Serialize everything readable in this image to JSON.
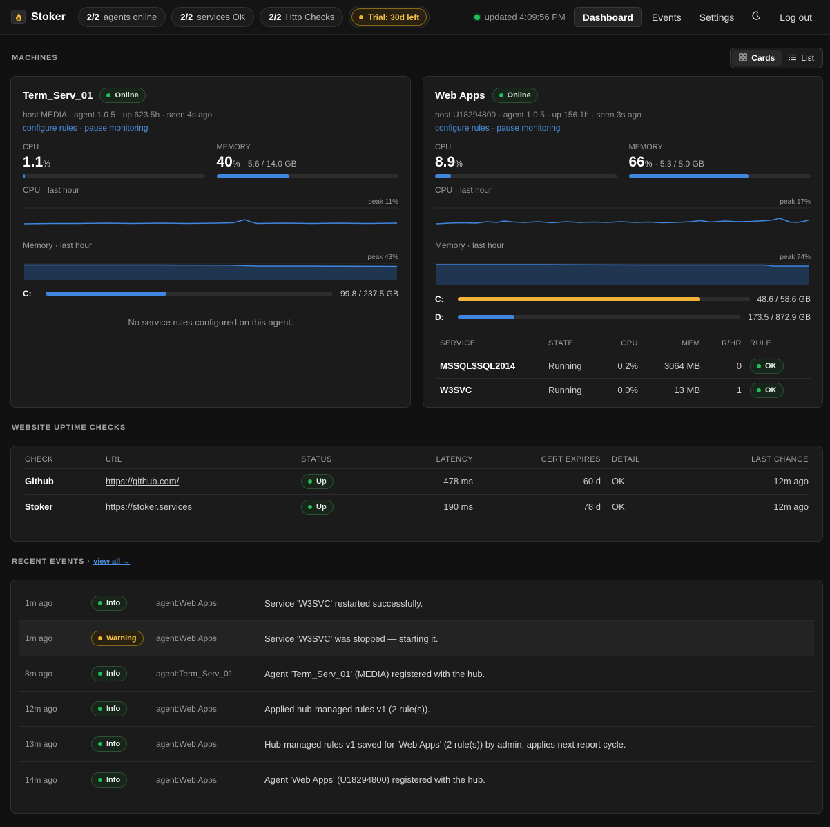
{
  "header": {
    "brand": "Stoker",
    "agents": {
      "count": "2/2",
      "label": "agents online"
    },
    "services": {
      "count": "2/2",
      "label": "services OK"
    },
    "checks": {
      "count": "2/2",
      "label": "Http Checks"
    },
    "trial": "Trial: 30d left",
    "updated": "updated 4:09:56 PM",
    "nav": {
      "dashboard": "Dashboard",
      "events": "Events",
      "settings": "Settings",
      "logout": "Log out"
    }
  },
  "machines_section": {
    "title": "MACHINES",
    "view_cards": "Cards",
    "view_list": "List"
  },
  "machines": [
    {
      "name": "Term_Serv_01",
      "status": "Online",
      "info": "host MEDIA · agent 1.0.5 · up 623.5h · seen 4s ago",
      "link_configure": "configure rules",
      "link_sep": " · ",
      "link_pause": "pause monitoring",
      "cpu_label": "CPU",
      "cpu_value": "1.1",
      "cpu_unit": "%",
      "cpu_pct": 1.1,
      "mem_label": "MEMORY",
      "mem_value": "40",
      "mem_unit": "%",
      "mem_detail": "· 5.6 / 14.0 GB",
      "mem_pct": 40,
      "cpu_spark_label": "CPU · last hour",
      "cpu_peak": "peak 11%",
      "mem_spark_label": "Memory · last hour",
      "mem_peak": "peak 43%",
      "disks": [
        {
          "letter": "C:",
          "value": "99.8 / 237.5 GB",
          "pct": 42,
          "color": "#3f86e0"
        }
      ],
      "no_rules": "No service rules configured on this agent."
    },
    {
      "name": "Web Apps",
      "status": "Online",
      "info": "host U18294800 · agent 1.0.5 · up 156.1h · seen 3s ago",
      "link_configure": "configure rules",
      "link_sep": " · ",
      "link_pause": "pause monitoring",
      "cpu_label": "CPU",
      "cpu_value": "8.9",
      "cpu_unit": "%",
      "cpu_pct": 8.9,
      "mem_label": "MEMORY",
      "mem_value": "66",
      "mem_unit": "%",
      "mem_detail": "· 5.3 / 8.0 GB",
      "mem_pct": 66,
      "cpu_spark_label": "CPU · last hour",
      "cpu_peak": "peak 17%",
      "mem_spark_label": "Memory · last hour",
      "mem_peak": "peak 74%",
      "disks": [
        {
          "letter": "C:",
          "value": "48.6 / 58.6 GB",
          "pct": 83,
          "color": "#f2b33a"
        },
        {
          "letter": "D:",
          "value": "173.5 / 872.9 GB",
          "pct": 20,
          "color": "#3f86e0"
        }
      ],
      "services_table": {
        "headers": {
          "service": "SERVICE",
          "state": "STATE",
          "cpu": "CPU",
          "mem": "MEM",
          "rhr": "R/HR",
          "rule": "RULE"
        },
        "rows": [
          {
            "service": "MSSQL$SQL2014",
            "state": "Running",
            "cpu": "0.2%",
            "mem": "3064 MB",
            "rhr": "0",
            "rule": "OK"
          },
          {
            "service": "W3SVC",
            "state": "Running",
            "cpu": "0.0%",
            "mem": "13 MB",
            "rhr": "1",
            "rule": "OK"
          }
        ]
      }
    }
  ],
  "uptime": {
    "title": "WEBSITE UPTIME CHECKS",
    "headers": {
      "check": "CHECK",
      "url": "URL",
      "status": "STATUS",
      "latency": "LATENCY",
      "cert": "CERT EXPIRES",
      "detail": "DETAIL",
      "last": "LAST CHANGE"
    },
    "rows": [
      {
        "check": "Github",
        "url": "https://github.com/",
        "status": "Up",
        "latency": "478 ms",
        "cert": "60 d",
        "detail": "OK",
        "last": "12m ago"
      },
      {
        "check": "Stoker",
        "url": "https://stoker.services",
        "status": "Up",
        "latency": "190 ms",
        "cert": "78 d",
        "detail": "OK",
        "last": "12m ago"
      }
    ]
  },
  "events": {
    "title": "RECENT EVENTS · ",
    "view_all": "view all →",
    "rows": [
      {
        "time": "1m ago",
        "level": "Info",
        "agent": "agent:Web Apps",
        "message": "Service 'W3SVC' restarted successfully."
      },
      {
        "time": "1m ago",
        "level": "Warning",
        "agent": "agent:Web Apps",
        "message": "Service 'W3SVC' was stopped — starting it."
      },
      {
        "time": "8m ago",
        "level": "Info",
        "agent": "agent:Term_Serv_01",
        "message": "Agent 'Term_Serv_01' (MEDIA) registered with the hub."
      },
      {
        "time": "12m ago",
        "level": "Info",
        "agent": "agent:Web Apps",
        "message": "Applied hub-managed rules v1 (2 rule(s))."
      },
      {
        "time": "13m ago",
        "level": "Info",
        "agent": "agent:Web Apps",
        "message": "Hub-managed rules v1 saved for 'Web Apps' (2 rule(s)) by admin, applies next report cycle."
      },
      {
        "time": "14m ago",
        "level": "Info",
        "agent": "agent:Web Apps",
        "message": "Agent 'Web Apps' (U18294800) registered with the hub."
      }
    ]
  },
  "colors": {
    "accent": "#3f86e0",
    "ok": "#21c15a",
    "warn": "#f2b33a"
  }
}
